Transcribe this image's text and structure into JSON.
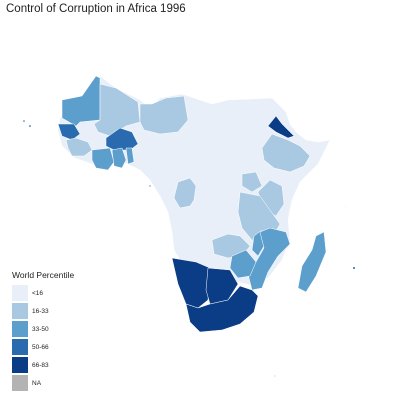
{
  "title": "Control of Corruption in Africa 1996",
  "legend": {
    "title": "World Percentile",
    "items": [
      {
        "label": "<16",
        "color": "#e9eff9"
      },
      {
        "label": "16-33",
        "color": "#a9c9e2"
      },
      {
        "label": "33-50",
        "color": "#5c9fcd"
      },
      {
        "label": "50-66",
        "color": "#2a6aaf"
      },
      {
        "label": "66-83",
        "color": "#0b3c86"
      },
      {
        "label": "NA",
        "color": "#b3b3b3"
      }
    ]
  },
  "regions": [
    {
      "name": "North-Africa",
      "class": "<16"
    },
    {
      "name": "Mali",
      "class": "16-33"
    },
    {
      "name": "Niger",
      "class": "16-33"
    },
    {
      "name": "Chad",
      "class": "16-33"
    },
    {
      "name": "Mauritania",
      "class": "33-50"
    },
    {
      "name": "Senegal",
      "class": "50-66"
    },
    {
      "name": "Burkina Faso",
      "class": "50-66"
    },
    {
      "name": "Ghana",
      "class": "33-50"
    },
    {
      "name": "Cote d'Ivoire",
      "class": "33-50"
    },
    {
      "name": "Togo",
      "class": "33-50"
    },
    {
      "name": "Eritrea",
      "class": "66-83"
    },
    {
      "name": "Ethiopia",
      "class": "16-33"
    },
    {
      "name": "Uganda",
      "class": "16-33"
    },
    {
      "name": "Kenya",
      "class": "16-33"
    },
    {
      "name": "Tanzania",
      "class": "16-33"
    },
    {
      "name": "Malawi",
      "class": "33-50"
    },
    {
      "name": "Mozambique",
      "class": "33-50"
    },
    {
      "name": "Zambia",
      "class": "16-33"
    },
    {
      "name": "Zimbabwe",
      "class": "33-50"
    },
    {
      "name": "Madagascar",
      "class": "33-50"
    },
    {
      "name": "Namibia",
      "class": "66-83"
    },
    {
      "name": "Botswana",
      "class": "66-83"
    },
    {
      "name": "South Africa",
      "class": "66-83"
    }
  ]
}
